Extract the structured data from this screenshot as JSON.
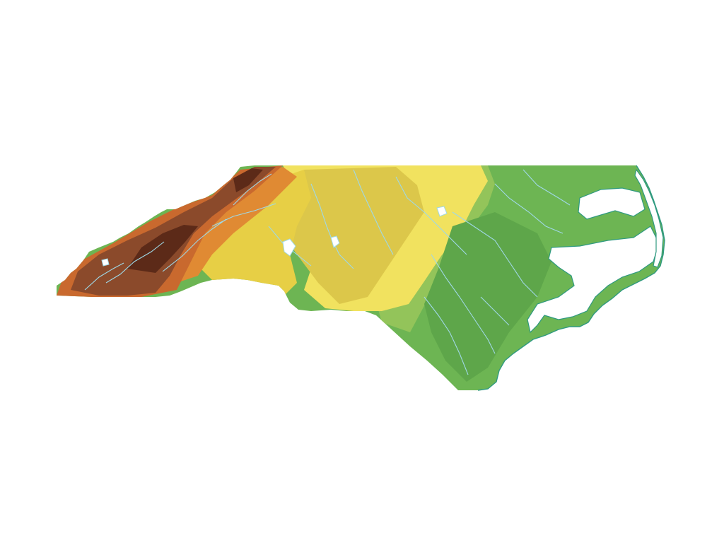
{
  "map": {
    "region": "north-carolina",
    "style": "elevation-relief",
    "elevation_palette": {
      "highest": "#5c2a18",
      "high": "#8b4a2b",
      "upper": "#c9692e",
      "upper_mid": "#e08a33",
      "mid": "#eab03a",
      "plateau": "#e7cf45",
      "piedmont": "#f1e25f",
      "piedmont_dark": "#dcc74a",
      "transition": "#93c45a",
      "coastal": "#6db553",
      "coastal_dark": "#5ea64a"
    },
    "water_color": "#9fd8e6",
    "coastline_color": "#2f9a80",
    "background_color": "#ffffff"
  }
}
